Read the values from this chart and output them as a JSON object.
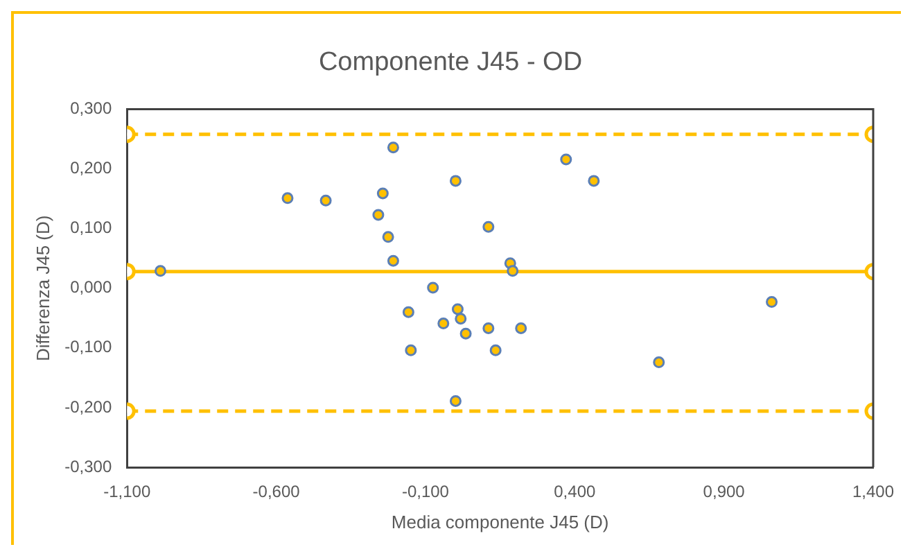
{
  "chart_data": {
    "type": "scatter",
    "title": "Componente J45 - OD",
    "xlabel": "Media componente J45 (D)",
    "ylabel": "Differenza J45 (D)",
    "xlim": [
      -1.1,
      1.4
    ],
    "ylim": [
      -0.3,
      0.3
    ],
    "xticks": [
      {
        "value": -1.1,
        "label": "-1,100"
      },
      {
        "value": -0.6,
        "label": "-0,600"
      },
      {
        "value": -0.1,
        "label": "-0,100"
      },
      {
        "value": 0.4,
        "label": "0,400"
      },
      {
        "value": 0.9,
        "label": "0,900"
      },
      {
        "value": 1.4,
        "label": "1,400"
      }
    ],
    "yticks": [
      {
        "value": -0.3,
        "label": "-0,300"
      },
      {
        "value": -0.2,
        "label": "-0,200"
      },
      {
        "value": -0.1,
        "label": "-0,100"
      },
      {
        "value": 0,
        "label": "0,000"
      },
      {
        "value": 0.1,
        "label": "0,100"
      },
      {
        "value": 0.2,
        "label": "0,200"
      },
      {
        "value": 0.3,
        "label": "0,300"
      }
    ],
    "grid": false,
    "legend": false,
    "marker": "circle",
    "series": [
      {
        "color": "#ffc000",
        "x": [
          -0.988,
          -0.562,
          -0.434,
          -0.208,
          -0.243,
          -0.258,
          -0.225,
          -0.208,
          0.001,
          0.111,
          0.184,
          0.192,
          -0.075,
          -0.157,
          0.008,
          0.018,
          -0.04,
          0.035,
          0.111,
          0.22,
          -0.149,
          0.135,
          0.001,
          0.371,
          0.464,
          1.06,
          0.682
        ],
        "values": [
          0.029,
          0.151,
          0.147,
          0.236,
          0.159,
          0.123,
          0.086,
          0.046,
          0.18,
          0.103,
          0.042,
          0.029,
          0.001,
          -0.04,
          -0.035,
          -0.051,
          -0.059,
          -0.076,
          -0.067,
          -0.067,
          -0.104,
          -0.104,
          -0.189,
          0.216,
          0.18,
          -0.023,
          -0.124
        ]
      },
      {
        "type": "line",
        "color": "#ffc000",
        "line_style": "dashed",
        "x": [
          -1.1,
          1.4
        ],
        "values": [
          0.258,
          0.258
        ]
      },
      {
        "type": "line",
        "color": "#ffc000",
        "line_style": "solid",
        "x": [
          -1.1,
          1.4
        ],
        "values": [
          0.028,
          0.028
        ]
      },
      {
        "type": "line",
        "color": "#ffc000",
        "line_style": "dashed",
        "x": [
          -1.1,
          1.4
        ],
        "values": [
          -0.206,
          -0.206
        ]
      }
    ]
  }
}
